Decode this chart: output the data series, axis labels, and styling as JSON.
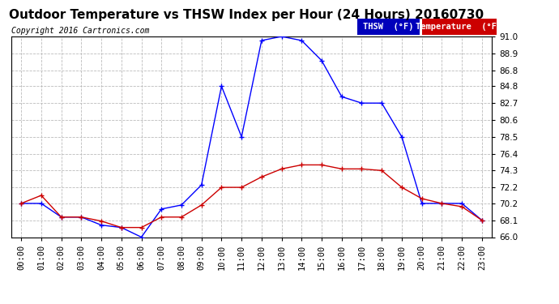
{
  "title": "Outdoor Temperature vs THSW Index per Hour (24 Hours) 20160730",
  "copyright": "Copyright 2016 Cartronics.com",
  "hours": [
    "00:00",
    "01:00",
    "02:00",
    "03:00",
    "04:00",
    "05:00",
    "06:00",
    "07:00",
    "08:00",
    "09:00",
    "10:00",
    "11:00",
    "12:00",
    "13:00",
    "14:00",
    "15:00",
    "16:00",
    "17:00",
    "18:00",
    "19:00",
    "20:00",
    "21:00",
    "22:00",
    "23:00"
  ],
  "thsw": [
    70.2,
    70.2,
    68.5,
    68.5,
    67.5,
    67.2,
    66.0,
    69.5,
    70.0,
    72.5,
    84.8,
    78.5,
    90.5,
    91.0,
    90.5,
    88.0,
    83.5,
    82.7,
    82.7,
    78.5,
    70.2,
    70.2,
    70.2,
    68.1
  ],
  "temperature": [
    70.2,
    71.2,
    68.5,
    68.5,
    68.0,
    67.2,
    67.2,
    68.5,
    68.5,
    70.0,
    72.2,
    72.2,
    73.5,
    74.5,
    75.0,
    75.0,
    74.5,
    74.5,
    74.3,
    72.2,
    70.8,
    70.2,
    69.8,
    68.1
  ],
  "ylim": [
    66.0,
    91.0
  ],
  "yticks": [
    66.0,
    68.1,
    70.2,
    72.2,
    74.3,
    76.4,
    78.5,
    80.6,
    82.7,
    84.8,
    86.8,
    88.9,
    91.0
  ],
  "thsw_color": "#0000ff",
  "temp_color": "#cc0000",
  "bg_color": "#ffffff",
  "grid_color": "#bbbbbb",
  "thsw_label": "THSW  (°F)",
  "temp_label": "Temperature  (°F)",
  "thsw_legend_bg": "#0000bb",
  "temp_legend_bg": "#cc0000",
  "title_fontsize": 11,
  "copyright_fontsize": 7,
  "tick_fontsize": 7.5,
  "legend_fontsize": 7.5
}
